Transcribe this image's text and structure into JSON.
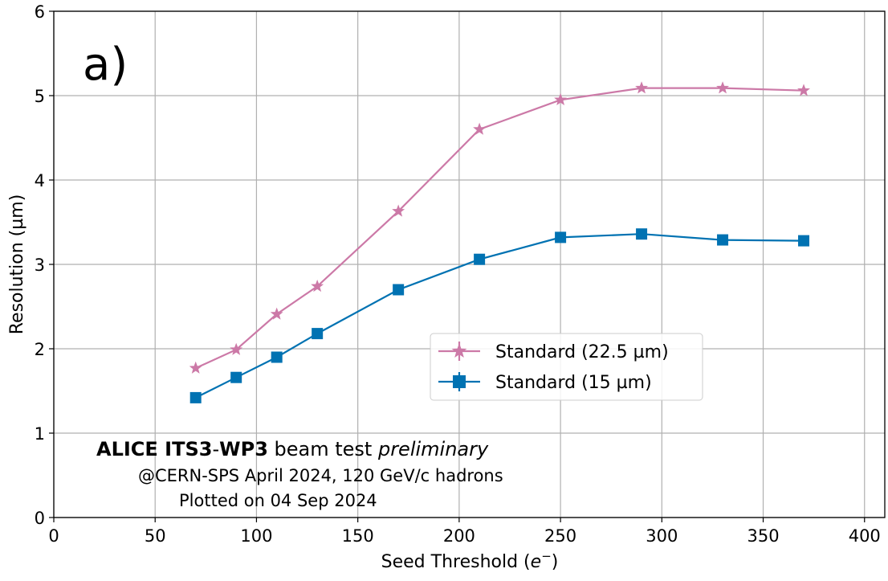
{
  "chart_data": {
    "type": "line",
    "panel_label": "a)",
    "xlabel_main": "Seed Threshold (",
    "xlabel_var": "e",
    "xlabel_sup": "−",
    "xlabel_close": ")",
    "ylabel": "Resolution (µm)",
    "xlim": [
      0,
      410
    ],
    "ylim": [
      0,
      6
    ],
    "xticks": [
      0,
      50,
      100,
      150,
      200,
      250,
      300,
      350,
      400
    ],
    "yticks": [
      0,
      1,
      2,
      3,
      4,
      5,
      6
    ],
    "grid": true,
    "legend_position": "center-right",
    "x": [
      70,
      90,
      110,
      130,
      170,
      210,
      250,
      290,
      330,
      370
    ],
    "series": [
      {
        "name": "Standard (22.5 µm)",
        "color": "#cc79a7",
        "marker": "star",
        "values": [
          1.77,
          1.99,
          2.41,
          2.74,
          3.63,
          4.6,
          4.95,
          5.09,
          5.09,
          5.06
        ]
      },
      {
        "name": "Standard (15 µm)",
        "color": "#0072b2",
        "marker": "square",
        "values": [
          1.42,
          1.66,
          1.9,
          2.18,
          2.7,
          3.06,
          3.32,
          3.36,
          3.29,
          3.28
        ]
      }
    ],
    "annotation": {
      "line1_bold": "ALICE ITS3",
      "line1_dash": "-",
      "line1_bold2": "WP3",
      "line1_plain": " beam test ",
      "line1_italic": "preliminary",
      "line2": "@CERN-SPS April 2024, 120 GeV/c hadrons",
      "line3": "Plotted on 04 Sep 2024"
    }
  }
}
